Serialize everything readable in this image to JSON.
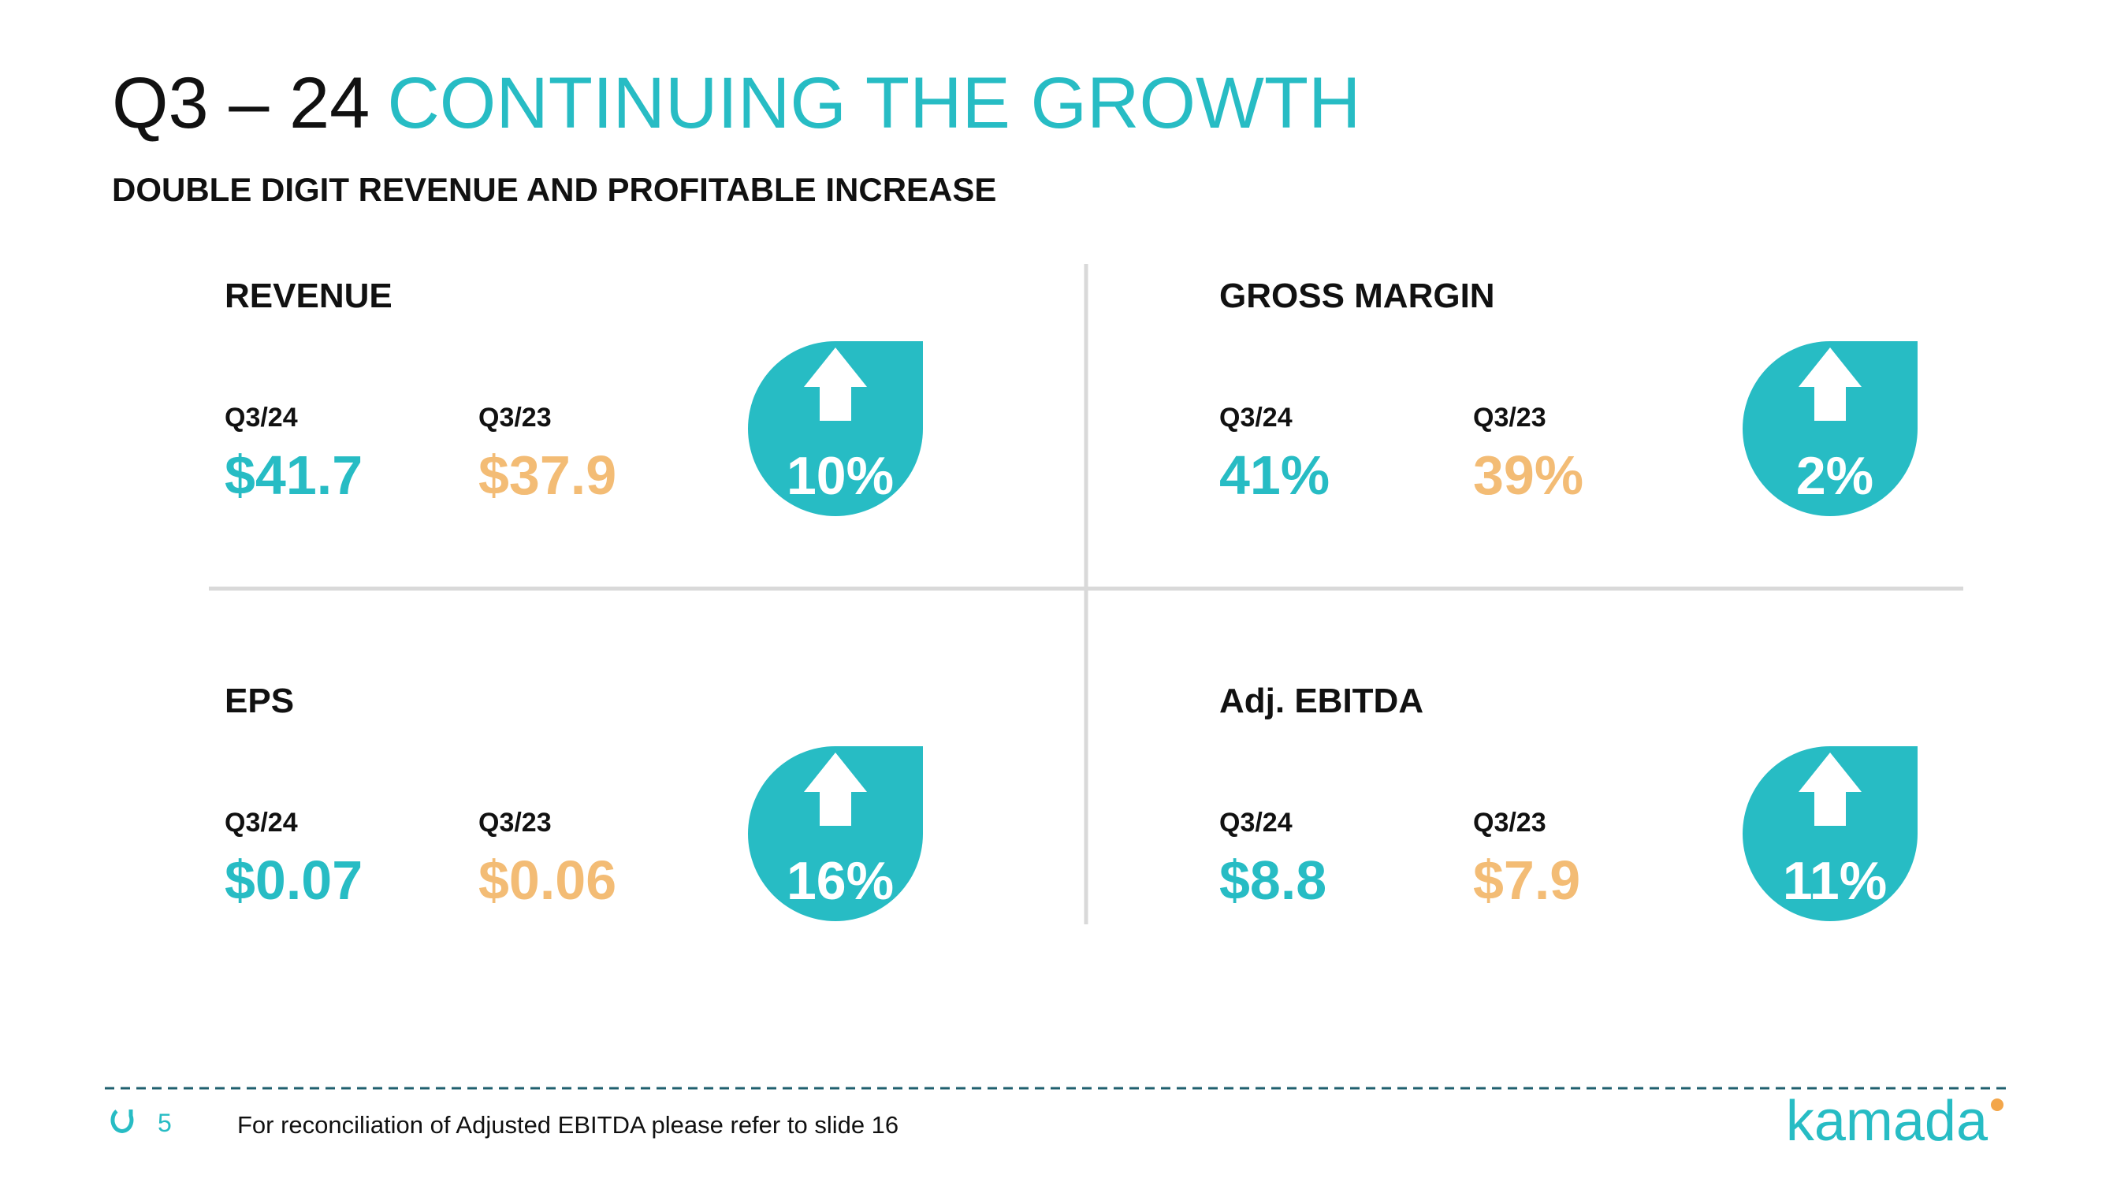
{
  "header": {
    "title_lead": "Q3 – 24",
    "title_accent": "CONTINUING THE GROWTH",
    "subtitle": "DOUBLE DIGIT REVENUE AND PROFITABLE INCREASE"
  },
  "metrics": [
    {
      "label": "REVENUE",
      "current_label": "Q3/24",
      "current_value": "$41.7",
      "prior_label": "Q3/23",
      "prior_value": "$37.9",
      "change": "10%"
    },
    {
      "label": "GROSS MARGIN",
      "current_label": "Q3/24",
      "current_value": "41%",
      "prior_label": "Q3/23",
      "prior_value": "39%",
      "change": "2%"
    },
    {
      "label": "EPS",
      "current_label": "Q3/24",
      "current_value": "$0.07",
      "prior_label": "Q3/23",
      "prior_value": "$0.06",
      "change": "16%"
    },
    {
      "label": "Adj. EBITDA",
      "current_label": "Q3/24",
      "current_value": "$8.8",
      "prior_label": "Q3/23",
      "prior_value": "$7.9",
      "change": "11%"
    }
  ],
  "footer": {
    "page_number": "5",
    "note": "For reconciliation of Adjusted EBITDA please refer to slide 16",
    "logo": "kamada"
  }
}
